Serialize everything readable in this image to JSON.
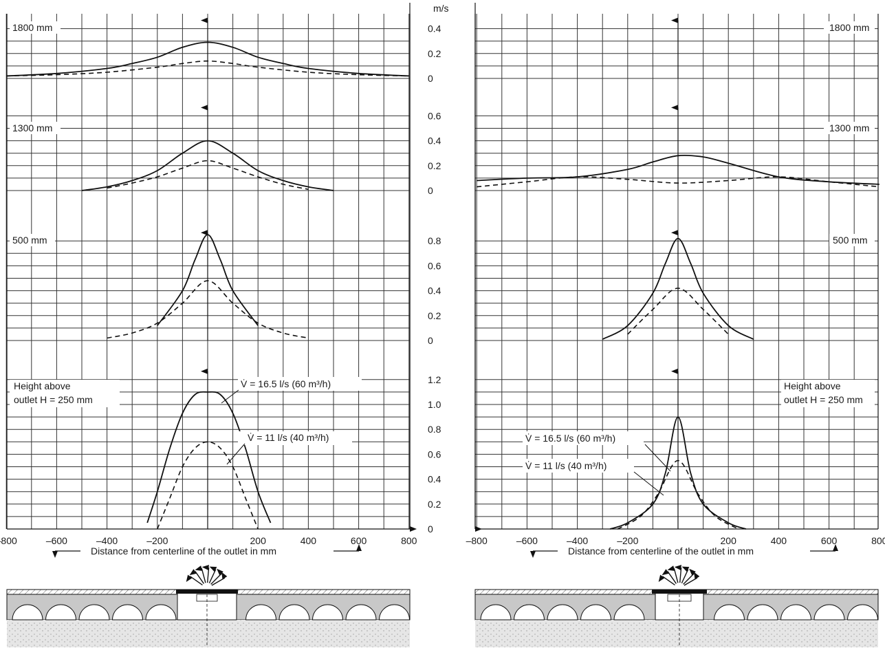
{
  "unit_label": "m/s",
  "xlabel": "Distance from centerline of the outlet in mm",
  "x_ticks": [
    "–800",
    "–600",
    "–400",
    "–200",
    "200",
    "400",
    "600",
    "800"
  ],
  "heights": {
    "h1800": "1800 mm",
    "h1300": "1300 mm",
    "h500": "500 mm",
    "h250_line1": "Height above",
    "h250_line2": "outlet H = 250 mm"
  },
  "y_ticks": {
    "p1800": [
      "0",
      "0.2",
      "0.4"
    ],
    "p1300": [
      "0",
      "0.2",
      "0.4",
      "0.6"
    ],
    "p500": [
      "0",
      "0.2",
      "0.4",
      "0.6",
      "0.8"
    ],
    "p250": [
      "0",
      "0.2",
      "0.4",
      "0.6",
      "0.8",
      "1.0",
      "1.2"
    ]
  },
  "legend": {
    "v165": "V̇ = 16.5 l/s (60 m³/h)",
    "v11": "V̇ = 11 l/s (40 m³/h)"
  },
  "colors": {
    "line": "#111111",
    "duct_fill": "#c8c8c8",
    "grid": "#333333"
  },
  "chart_data": [
    {
      "type": "line",
      "panel": "left",
      "height": "1800 mm",
      "ylim": [
        0,
        0.4
      ],
      "xlim": [
        -800,
        800
      ],
      "series": [
        {
          "name": "V̇ = 16.5 l/s (60 m³/h)",
          "style": "solid",
          "x": [
            -800,
            -600,
            -400,
            -300,
            -200,
            -100,
            0,
            100,
            200,
            300,
            400,
            600,
            800
          ],
          "y": [
            0.02,
            0.04,
            0.08,
            0.12,
            0.17,
            0.25,
            0.29,
            0.25,
            0.17,
            0.12,
            0.08,
            0.04,
            0.02
          ]
        },
        {
          "name": "V̇ = 11 l/s (40 m³/h)",
          "style": "dashed",
          "x": [
            -800,
            -600,
            -400,
            -200,
            -100,
            0,
            100,
            200,
            400,
            600,
            800
          ],
          "y": [
            0.02,
            0.03,
            0.05,
            0.09,
            0.12,
            0.14,
            0.12,
            0.09,
            0.05,
            0.03,
            0.02
          ]
        }
      ]
    },
    {
      "type": "line",
      "panel": "left",
      "height": "1300 mm",
      "ylim": [
        0,
        0.6
      ],
      "xlim": [
        -800,
        800
      ],
      "series": [
        {
          "name": "V̇ = 16.5 l/s (60 m³/h)",
          "style": "solid",
          "x": [
            -500,
            -400,
            -300,
            -200,
            -100,
            0,
            100,
            200,
            300,
            400,
            500
          ],
          "y": [
            0.0,
            0.03,
            0.08,
            0.16,
            0.3,
            0.4,
            0.3,
            0.16,
            0.08,
            0.03,
            0.0
          ]
        },
        {
          "name": "V̇ = 11 l/s (40 m³/h)",
          "style": "dashed",
          "x": [
            -400,
            -300,
            -200,
            -100,
            0,
            100,
            200,
            300,
            400
          ],
          "y": [
            0.02,
            0.06,
            0.11,
            0.18,
            0.24,
            0.18,
            0.11,
            0.05,
            0.01
          ]
        }
      ]
    },
    {
      "type": "line",
      "panel": "left",
      "height": "500 mm",
      "ylim": [
        0,
        0.8
      ],
      "xlim": [
        -800,
        800
      ],
      "series": [
        {
          "name": "V̇ = 16.5 l/s (60 m³/h)",
          "style": "solid",
          "x": [
            -200,
            -100,
            -50,
            0,
            50,
            100,
            200
          ],
          "y": [
            0.12,
            0.4,
            0.65,
            0.85,
            0.65,
            0.4,
            0.12
          ]
        },
        {
          "name": "V̇ = 11 l/s (40 m³/h)",
          "style": "dashed",
          "x": [
            -400,
            -300,
            -200,
            -100,
            0,
            100,
            200,
            300,
            400
          ],
          "y": [
            0.02,
            0.06,
            0.14,
            0.3,
            0.48,
            0.3,
            0.14,
            0.06,
            0.02
          ]
        }
      ]
    },
    {
      "type": "line",
      "panel": "left",
      "height": "250 mm",
      "ylim": [
        0,
        1.2
      ],
      "xlim": [
        -800,
        800
      ],
      "series": [
        {
          "name": "V̇ = 16.5 l/s (60 m³/h)",
          "style": "solid",
          "x": [
            -240,
            -200,
            -150,
            -100,
            -50,
            0,
            50,
            100,
            150,
            200,
            250
          ],
          "y": [
            0.05,
            0.3,
            0.65,
            0.93,
            1.08,
            1.1,
            1.08,
            0.93,
            0.65,
            0.3,
            0.05
          ]
        },
        {
          "name": "V̇ = 11 l/s (40 m³/h)",
          "style": "dashed",
          "x": [
            -200,
            -150,
            -100,
            -50,
            0,
            50,
            100,
            150,
            200
          ],
          "y": [
            0.0,
            0.25,
            0.5,
            0.65,
            0.7,
            0.65,
            0.5,
            0.25,
            0.0
          ]
        }
      ]
    },
    {
      "type": "line",
      "panel": "right",
      "height": "1300 mm",
      "ylim": [
        0,
        0.6
      ],
      "xlim": [
        -800,
        800
      ],
      "series": [
        {
          "name": "V̇ = 16.5 l/s (60 m³/h)",
          "style": "solid",
          "x": [
            -800,
            -600,
            -400,
            -200,
            -100,
            0,
            100,
            200,
            400,
            600,
            800
          ],
          "y": [
            0.08,
            0.1,
            0.11,
            0.17,
            0.23,
            0.28,
            0.27,
            0.22,
            0.11,
            0.07,
            0.05
          ]
        },
        {
          "name": "V̇ = 11 l/s (40 m³/h)",
          "style": "dashed",
          "x": [
            -800,
            -600,
            -400,
            -200,
            0,
            200,
            400,
            600,
            800
          ],
          "y": [
            0.03,
            0.07,
            0.11,
            0.09,
            0.06,
            0.08,
            0.11,
            0.07,
            0.03
          ]
        }
      ]
    },
    {
      "type": "line",
      "panel": "right",
      "height": "500 mm",
      "ylim": [
        0,
        0.8
      ],
      "xlim": [
        -800,
        800
      ],
      "series": [
        {
          "name": "V̇ = 16.5 l/s (60 m³/h)",
          "style": "solid",
          "x": [
            -300,
            -200,
            -100,
            -50,
            0,
            50,
            100,
            200,
            300
          ],
          "y": [
            0.01,
            0.12,
            0.38,
            0.62,
            0.82,
            0.62,
            0.38,
            0.12,
            0.01
          ]
        },
        {
          "name": "V̇ = 11 l/s (40 m³/h)",
          "style": "dashed",
          "x": [
            -200,
            -100,
            0,
            100,
            200
          ],
          "y": [
            0.05,
            0.25,
            0.42,
            0.25,
            0.05
          ]
        }
      ]
    },
    {
      "type": "line",
      "panel": "right",
      "height": "250 mm",
      "ylim": [
        0,
        1.2
      ],
      "xlim": [
        -800,
        800
      ],
      "series": [
        {
          "name": "V̇ = 16.5 l/s (60 m³/h)",
          "style": "solid",
          "x": [
            -270,
            -200,
            -100,
            -50,
            0,
            50,
            100,
            200,
            270
          ],
          "y": [
            0.0,
            0.05,
            0.2,
            0.45,
            0.9,
            0.45,
            0.2,
            0.05,
            0.0
          ]
        },
        {
          "name": "V̇ = 11 l/s (40 m³/h)",
          "style": "dashed",
          "x": [
            -240,
            -150,
            -80,
            0,
            80,
            150,
            240
          ],
          "y": [
            0.0,
            0.1,
            0.28,
            0.55,
            0.28,
            0.1,
            0.0
          ]
        }
      ]
    }
  ]
}
